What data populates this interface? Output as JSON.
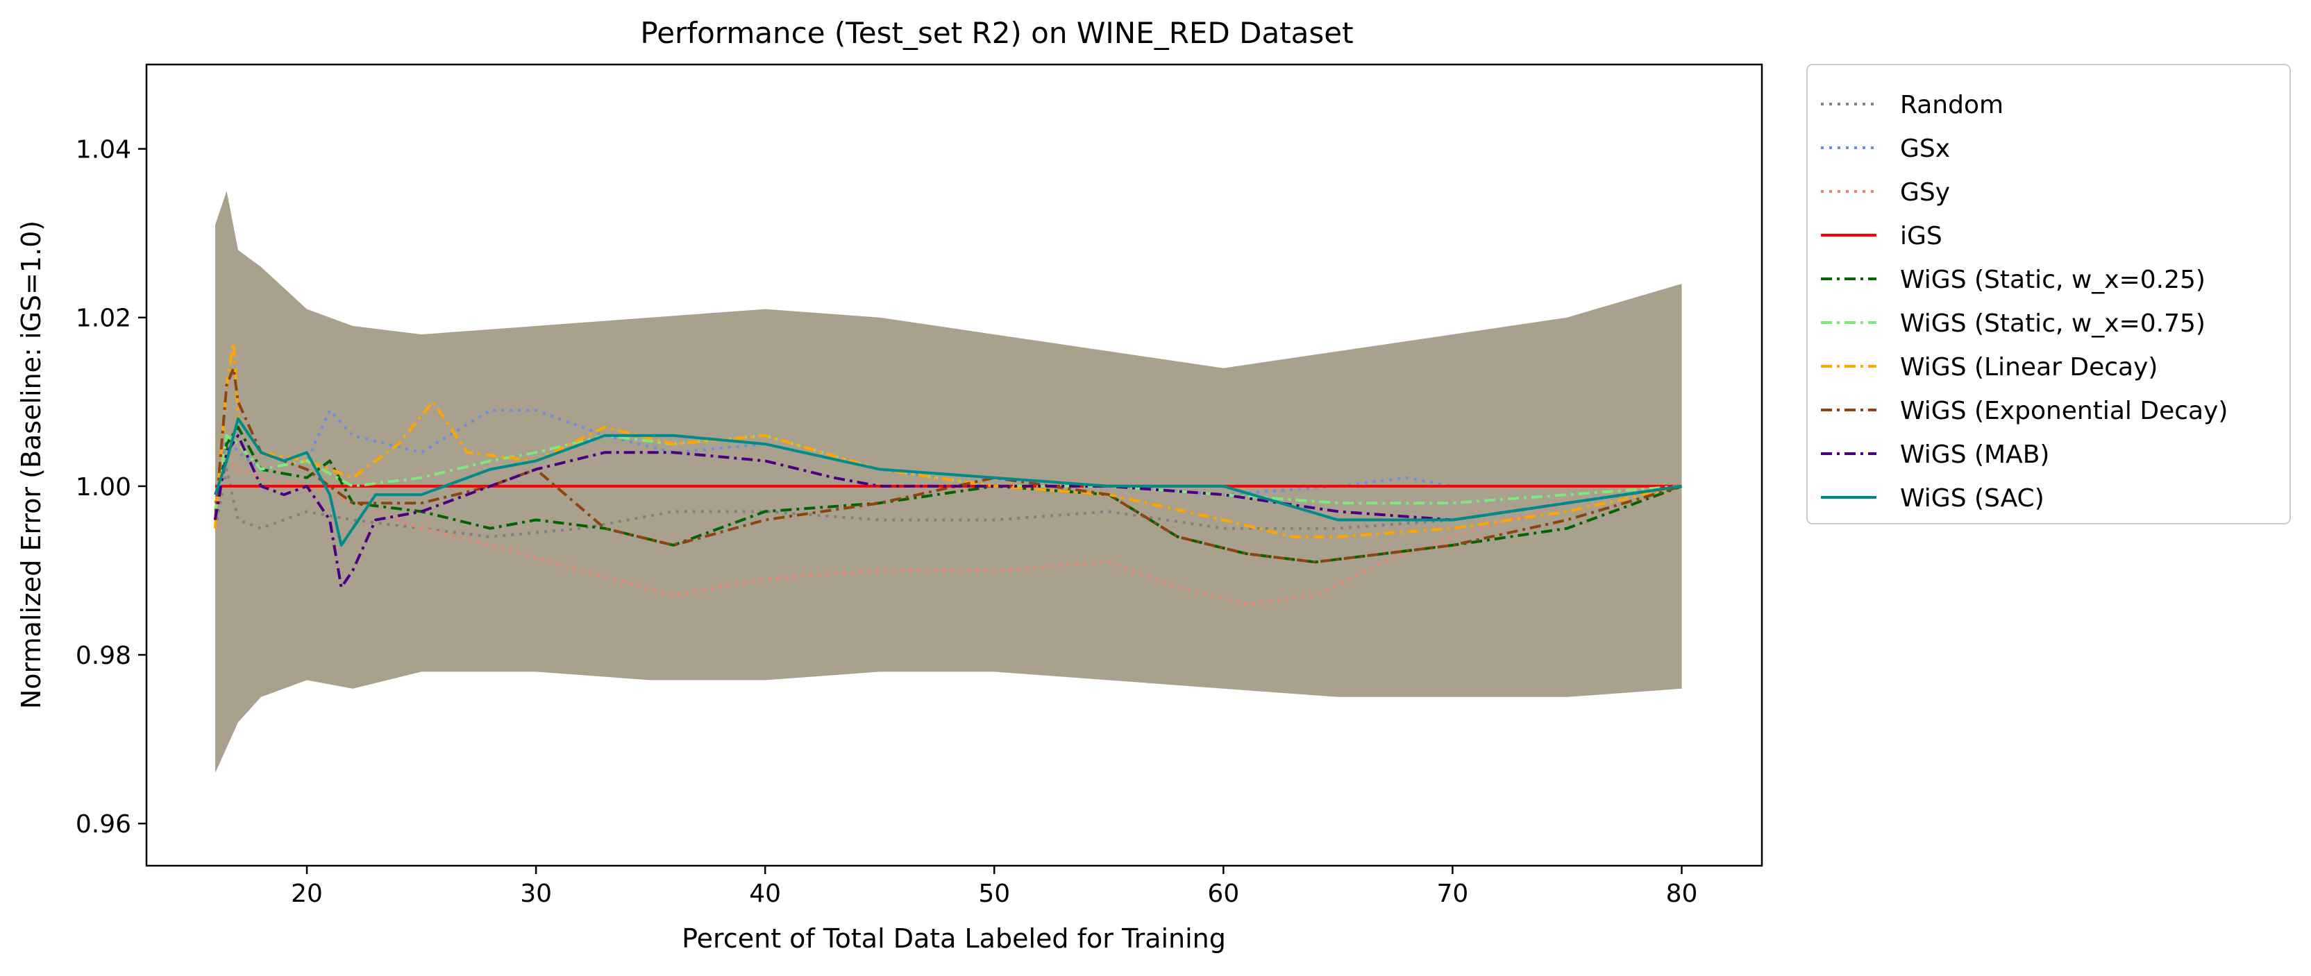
{
  "chart_data": {
    "type": "line",
    "title": "Performance (Test_set R2) on WINE_RED Dataset",
    "xlabel": "Percent of Total Data Labeled for Training",
    "ylabel": "Normalized Error (Baseline: iGS=1.0)",
    "xlim": [
      13,
      83.5
    ],
    "ylim": [
      0.955,
      1.05
    ],
    "xticks": [
      20,
      30,
      40,
      50,
      60,
      70,
      80
    ],
    "yticks": [
      0.96,
      0.98,
      1.0,
      1.02,
      1.04
    ],
    "ytick_labels": [
      "0.96",
      "0.98",
      "1.00",
      "1.02",
      "1.04"
    ],
    "grid": false,
    "legend_position": "outside-right",
    "band": {
      "x": [
        16,
        16.5,
        17,
        18,
        20,
        22,
        25,
        30,
        35,
        40,
        45,
        50,
        55,
        60,
        65,
        70,
        75,
        80
      ],
      "upper": [
        1.031,
        1.035,
        1.028,
        1.026,
        1.021,
        1.019,
        1.018,
        1.019,
        1.02,
        1.021,
        1.02,
        1.018,
        1.016,
        1.014,
        1.016,
        1.018,
        1.02,
        1.024
      ],
      "lower": [
        0.966,
        0.969,
        0.972,
        0.975,
        0.977,
        0.976,
        0.978,
        0.978,
        0.977,
        0.977,
        0.978,
        0.978,
        0.977,
        0.976,
        0.975,
        0.975,
        0.975,
        0.976
      ],
      "color": "#9a8f79"
    },
    "series": [
      {
        "name": "Random",
        "color": "#808080",
        "dash": "dot",
        "x": [
          16,
          16.5,
          17,
          18,
          20,
          22,
          25,
          28,
          32,
          36,
          40,
          45,
          50,
          55,
          60,
          65,
          70,
          75,
          80
        ],
        "values": [
          0.995,
          1.002,
          0.996,
          0.995,
          0.997,
          0.996,
          0.995,
          0.994,
          0.995,
          0.997,
          0.997,
          0.996,
          0.996,
          0.997,
          0.995,
          0.995,
          0.996,
          0.998,
          1.0
        ]
      },
      {
        "name": "GSx",
        "color": "#6b8fe0",
        "dash": "dot",
        "x": [
          16,
          16.5,
          17,
          18,
          20,
          21,
          22,
          25,
          28,
          30,
          33,
          36,
          40,
          45,
          50,
          55,
          60,
          65,
          68,
          70,
          75,
          80
        ],
        "values": [
          0.997,
          1.006,
          1.004,
          1.002,
          1.003,
          1.009,
          1.006,
          1.004,
          1.009,
          1.009,
          1.006,
          1.004,
          1.005,
          1.002,
          1.0,
          1.0,
          0.999,
          1.0,
          1.001,
          1.0,
          1.0,
          1.0
        ]
      },
      {
        "name": "GSy",
        "color": "#f08070",
        "dash": "dot",
        "x": [
          16,
          16.5,
          17,
          18,
          20,
          22,
          25,
          28,
          32,
          36,
          40,
          45,
          50,
          55,
          58,
          61,
          64,
          67,
          70,
          75,
          80
        ],
        "values": [
          0.998,
          1.003,
          1.002,
          1.001,
          1.0,
          0.998,
          0.995,
          0.993,
          0.99,
          0.987,
          0.989,
          0.99,
          0.99,
          0.991,
          0.988,
          0.986,
          0.987,
          0.991,
          0.994,
          0.998,
          1.0
        ]
      },
      {
        "name": "iGS",
        "color": "#ff0000",
        "dash": "solid",
        "x": [
          16,
          80
        ],
        "values": [
          1.0,
          1.0
        ]
      },
      {
        "name": "WiGS (Static, w_x=0.25)",
        "color": "#006400",
        "dash": "dashdot",
        "x": [
          16,
          16.5,
          17,
          18,
          20,
          21,
          22,
          25,
          28,
          30,
          33,
          36,
          40,
          45,
          50,
          55,
          58,
          61,
          64,
          67,
          70,
          75,
          80
        ],
        "values": [
          0.996,
          1.005,
          1.007,
          1.002,
          1.001,
          1.003,
          0.998,
          0.997,
          0.995,
          0.996,
          0.995,
          0.993,
          0.997,
          0.998,
          1.0,
          0.999,
          0.994,
          0.992,
          0.991,
          0.992,
          0.993,
          0.995,
          1.0
        ]
      },
      {
        "name": "WiGS (Static, w_x=0.75)",
        "color": "#7ee87e",
        "dash": "dashdot",
        "x": [
          16,
          16.5,
          17,
          18,
          20,
          22,
          25,
          28,
          30,
          33,
          36,
          40,
          45,
          50,
          55,
          60,
          65,
          70,
          75,
          80
        ],
        "values": [
          0.997,
          1.006,
          1.005,
          1.002,
          1.003,
          1.0,
          1.001,
          1.003,
          1.004,
          1.006,
          1.005,
          1.006,
          1.002,
          1.0,
          1.0,
          0.999,
          0.998,
          0.998,
          0.999,
          1.0
        ]
      },
      {
        "name": "WiGS (Linear Decay)",
        "color": "#ffa500",
        "dash": "dashdot",
        "x": [
          16,
          16.5,
          16.8,
          17,
          18,
          20,
          22,
          24,
          25.5,
          27,
          30,
          33,
          36,
          40,
          45,
          50,
          55,
          60,
          63,
          65,
          70,
          75,
          80
        ],
        "values": [
          0.995,
          1.012,
          1.017,
          1.008,
          1.004,
          1.003,
          1.001,
          1.005,
          1.01,
          1.004,
          1.003,
          1.007,
          1.005,
          1.006,
          1.002,
          1.0,
          0.999,
          0.996,
          0.994,
          0.994,
          0.995,
          0.997,
          1.0
        ]
      },
      {
        "name": "WiGS (Exponential Decay)",
        "color": "#8b4513",
        "dash": "dashdot",
        "x": [
          16,
          16.5,
          16.8,
          17,
          18,
          20,
          22,
          25,
          28,
          30,
          33,
          36,
          40,
          45,
          50,
          55,
          58,
          61,
          64,
          67,
          70,
          75,
          80
        ],
        "values": [
          0.996,
          1.012,
          1.014,
          1.01,
          1.004,
          1.002,
          0.998,
          0.998,
          1.0,
          1.002,
          0.995,
          0.993,
          0.996,
          0.998,
          1.001,
          0.999,
          0.994,
          0.992,
          0.991,
          0.992,
          0.993,
          0.996,
          1.0
        ]
      },
      {
        "name": "WiGS (MAB)",
        "color": "#4b0082",
        "dash": "dashdot",
        "x": [
          16,
          16.5,
          17,
          18,
          19,
          20,
          21,
          21.5,
          22,
          23,
          25,
          28,
          30,
          33,
          36,
          40,
          43,
          45,
          50,
          55,
          60,
          65,
          70,
          75,
          80
        ],
        "values": [
          0.996,
          1.004,
          1.006,
          1.0,
          0.999,
          1.0,
          0.996,
          0.988,
          0.99,
          0.996,
          0.997,
          1.0,
          1.002,
          1.004,
          1.004,
          1.003,
          1.001,
          1.0,
          1.0,
          1.0,
          0.999,
          0.997,
          0.996,
          0.998,
          1.0
        ]
      },
      {
        "name": "WiGS (SAC)",
        "color": "#008b8b",
        "dash": "solid",
        "x": [
          16,
          16.5,
          17,
          18,
          19,
          20,
          21,
          21.5,
          22,
          23,
          25,
          28,
          30,
          33,
          36,
          40,
          45,
          50,
          55,
          60,
          65,
          70,
          75,
          80
        ],
        "values": [
          0.999,
          1.003,
          1.008,
          1.004,
          1.003,
          1.004,
          0.999,
          0.993,
          0.995,
          0.999,
          0.999,
          1.002,
          1.003,
          1.006,
          1.006,
          1.005,
          1.002,
          1.001,
          1.0,
          1.0,
          0.996,
          0.996,
          0.998,
          1.0
        ]
      }
    ]
  }
}
